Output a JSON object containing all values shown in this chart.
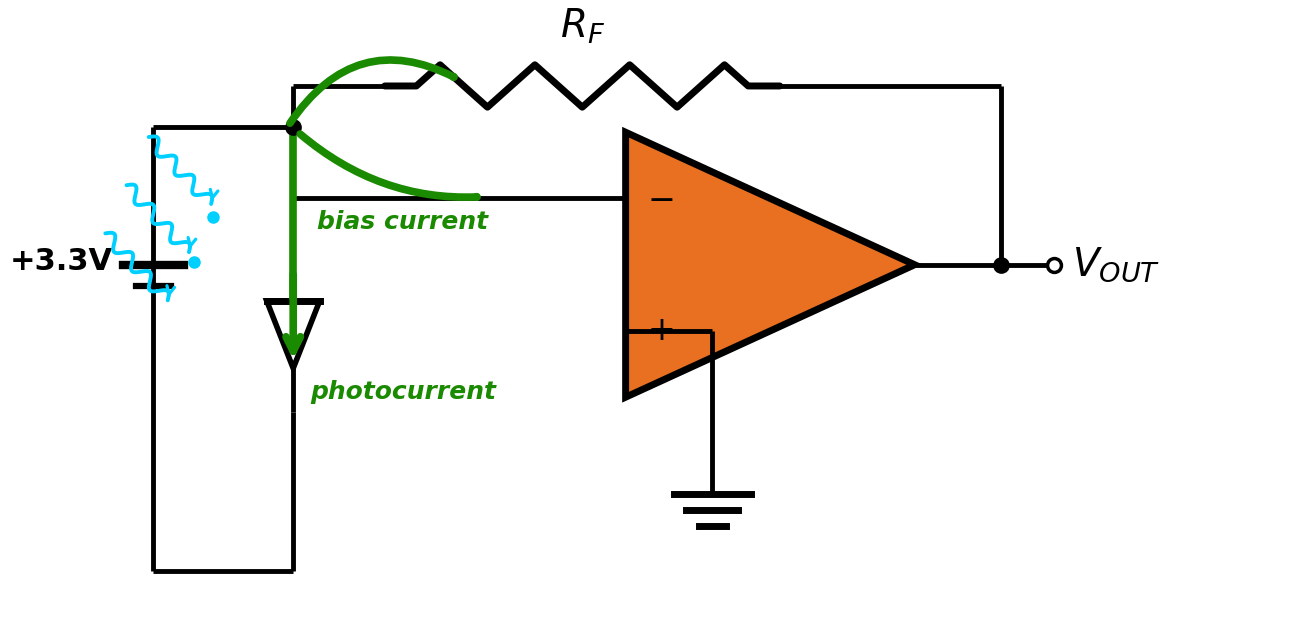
{
  "bg_color": "#ffffff",
  "black": "#000000",
  "green": "#1a8a00",
  "orange": "#e87020",
  "cyan": "#00d0ff",
  "lw_wire": 3.5,
  "lw_thick": 5.0,
  "lw_green": 5.5,
  "voltage_label": "+3.3V",
  "photocurrent_label": "photocurrent",
  "bias_label": "bias current",
  "rf_fontsize": 28,
  "vout_fontsize": 28,
  "label_fontsize": 18,
  "volt_fontsize": 22
}
